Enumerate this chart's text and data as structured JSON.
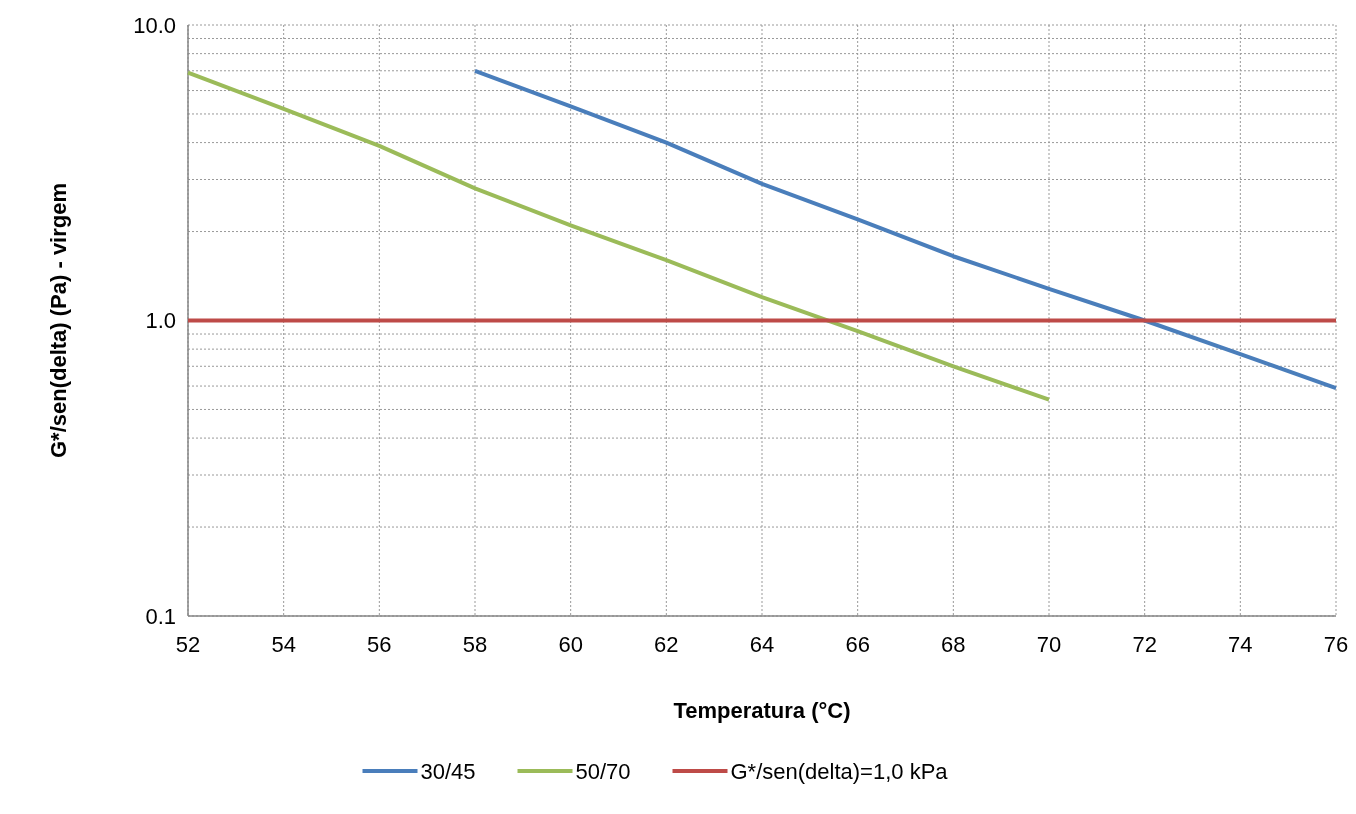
{
  "chart_data": {
    "type": "line",
    "xlabel": "Temperatura (°C)",
    "ylabel": "G*/sen(delta) (Pa) - virgem",
    "series": [
      {
        "name": "30/45",
        "color": "#4a7ebb",
        "x": [
          58,
          60,
          62,
          64,
          66,
          68,
          70,
          72,
          74,
          76
        ],
        "values": [
          7.0,
          5.3,
          4.0,
          2.9,
          2.2,
          1.65,
          1.28,
          1.0,
          0.77,
          0.59
        ]
      },
      {
        "name": "50/70",
        "color": "#9bbb59",
        "x": [
          52,
          54,
          56,
          58,
          60,
          62,
          64,
          66,
          68,
          70
        ],
        "values": [
          6.9,
          5.2,
          3.9,
          2.8,
          2.1,
          1.6,
          1.2,
          0.92,
          0.7,
          0.54
        ]
      },
      {
        "name": "G*/sen(delta)=1,0 kPa",
        "color": "#be4b48",
        "x": [
          52,
          76
        ],
        "values": [
          1,
          1
        ]
      }
    ],
    "xlim": [
      52,
      76
    ],
    "xticks": [
      52,
      54,
      56,
      58,
      60,
      62,
      64,
      66,
      68,
      70,
      72,
      74,
      76
    ],
    "ylim": [
      0.1,
      10
    ],
    "yticks": [
      {
        "value": 0.1,
        "label": "0.1"
      },
      {
        "value": 1,
        "label": "1.0"
      },
      {
        "value": 10,
        "label": "10.0"
      }
    ],
    "log": "y",
    "grid": true,
    "legend": "bottom",
    "marker": "none",
    "line_style": "solid"
  }
}
